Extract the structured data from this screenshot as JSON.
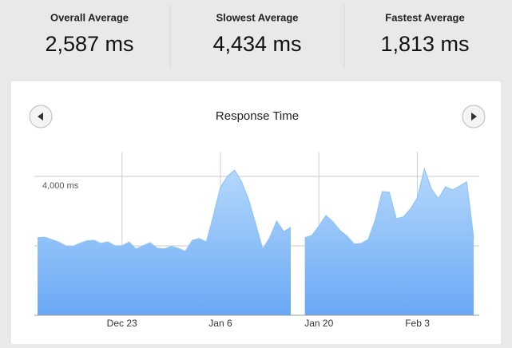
{
  "stats": [
    {
      "label": "Overall Average",
      "value": "2,587 ms"
    },
    {
      "label": "Slowest Average",
      "value": "4,434 ms"
    },
    {
      "label": "Fastest Average",
      "value": "1,813 ms"
    }
  ],
  "chart_data": {
    "type": "area",
    "title": "Response Time",
    "categories": [
      null,
      null,
      null,
      null,
      null,
      null,
      null,
      null,
      null,
      null,
      null,
      null,
      "Dec 23",
      null,
      null,
      null,
      null,
      null,
      null,
      null,
      null,
      null,
      null,
      null,
      null,
      null,
      "Jan 6",
      null,
      null,
      null,
      null,
      null,
      null,
      null,
      null,
      null,
      null,
      null,
      null,
      null,
      "Jan 20",
      null,
      null,
      null,
      null,
      null,
      null,
      null,
      null,
      null,
      null,
      null,
      null,
      null,
      "Feb 3",
      null,
      null,
      null,
      null,
      null,
      null,
      null,
      null
    ],
    "values": [
      2230,
      2250,
      2180,
      2110,
      2000,
      1980,
      2070,
      2140,
      2160,
      2070,
      2110,
      2000,
      2000,
      2110,
      1910,
      2000,
      2090,
      1930,
      1910,
      1980,
      1930,
      1840,
      2160,
      2210,
      2110,
      2870,
      3680,
      4000,
      4180,
      3840,
      3330,
      2640,
      1910,
      2230,
      2710,
      2410,
      2530,
      null,
      2230,
      2300,
      2570,
      2870,
      2690,
      2440,
      2280,
      2050,
      2070,
      2180,
      2740,
      3560,
      3540,
      2780,
      2830,
      3060,
      3380,
      4210,
      3630,
      3360,
      3700,
      3610,
      3720,
      3840,
      2230
    ],
    "color": "#8ec4f7",
    "ylim": [
      0,
      4700
    ],
    "yticks": [
      {
        "value": 4000,
        "label": "4,000 ms"
      }
    ],
    "ygrid": [
      2000,
      4000
    ]
  }
}
